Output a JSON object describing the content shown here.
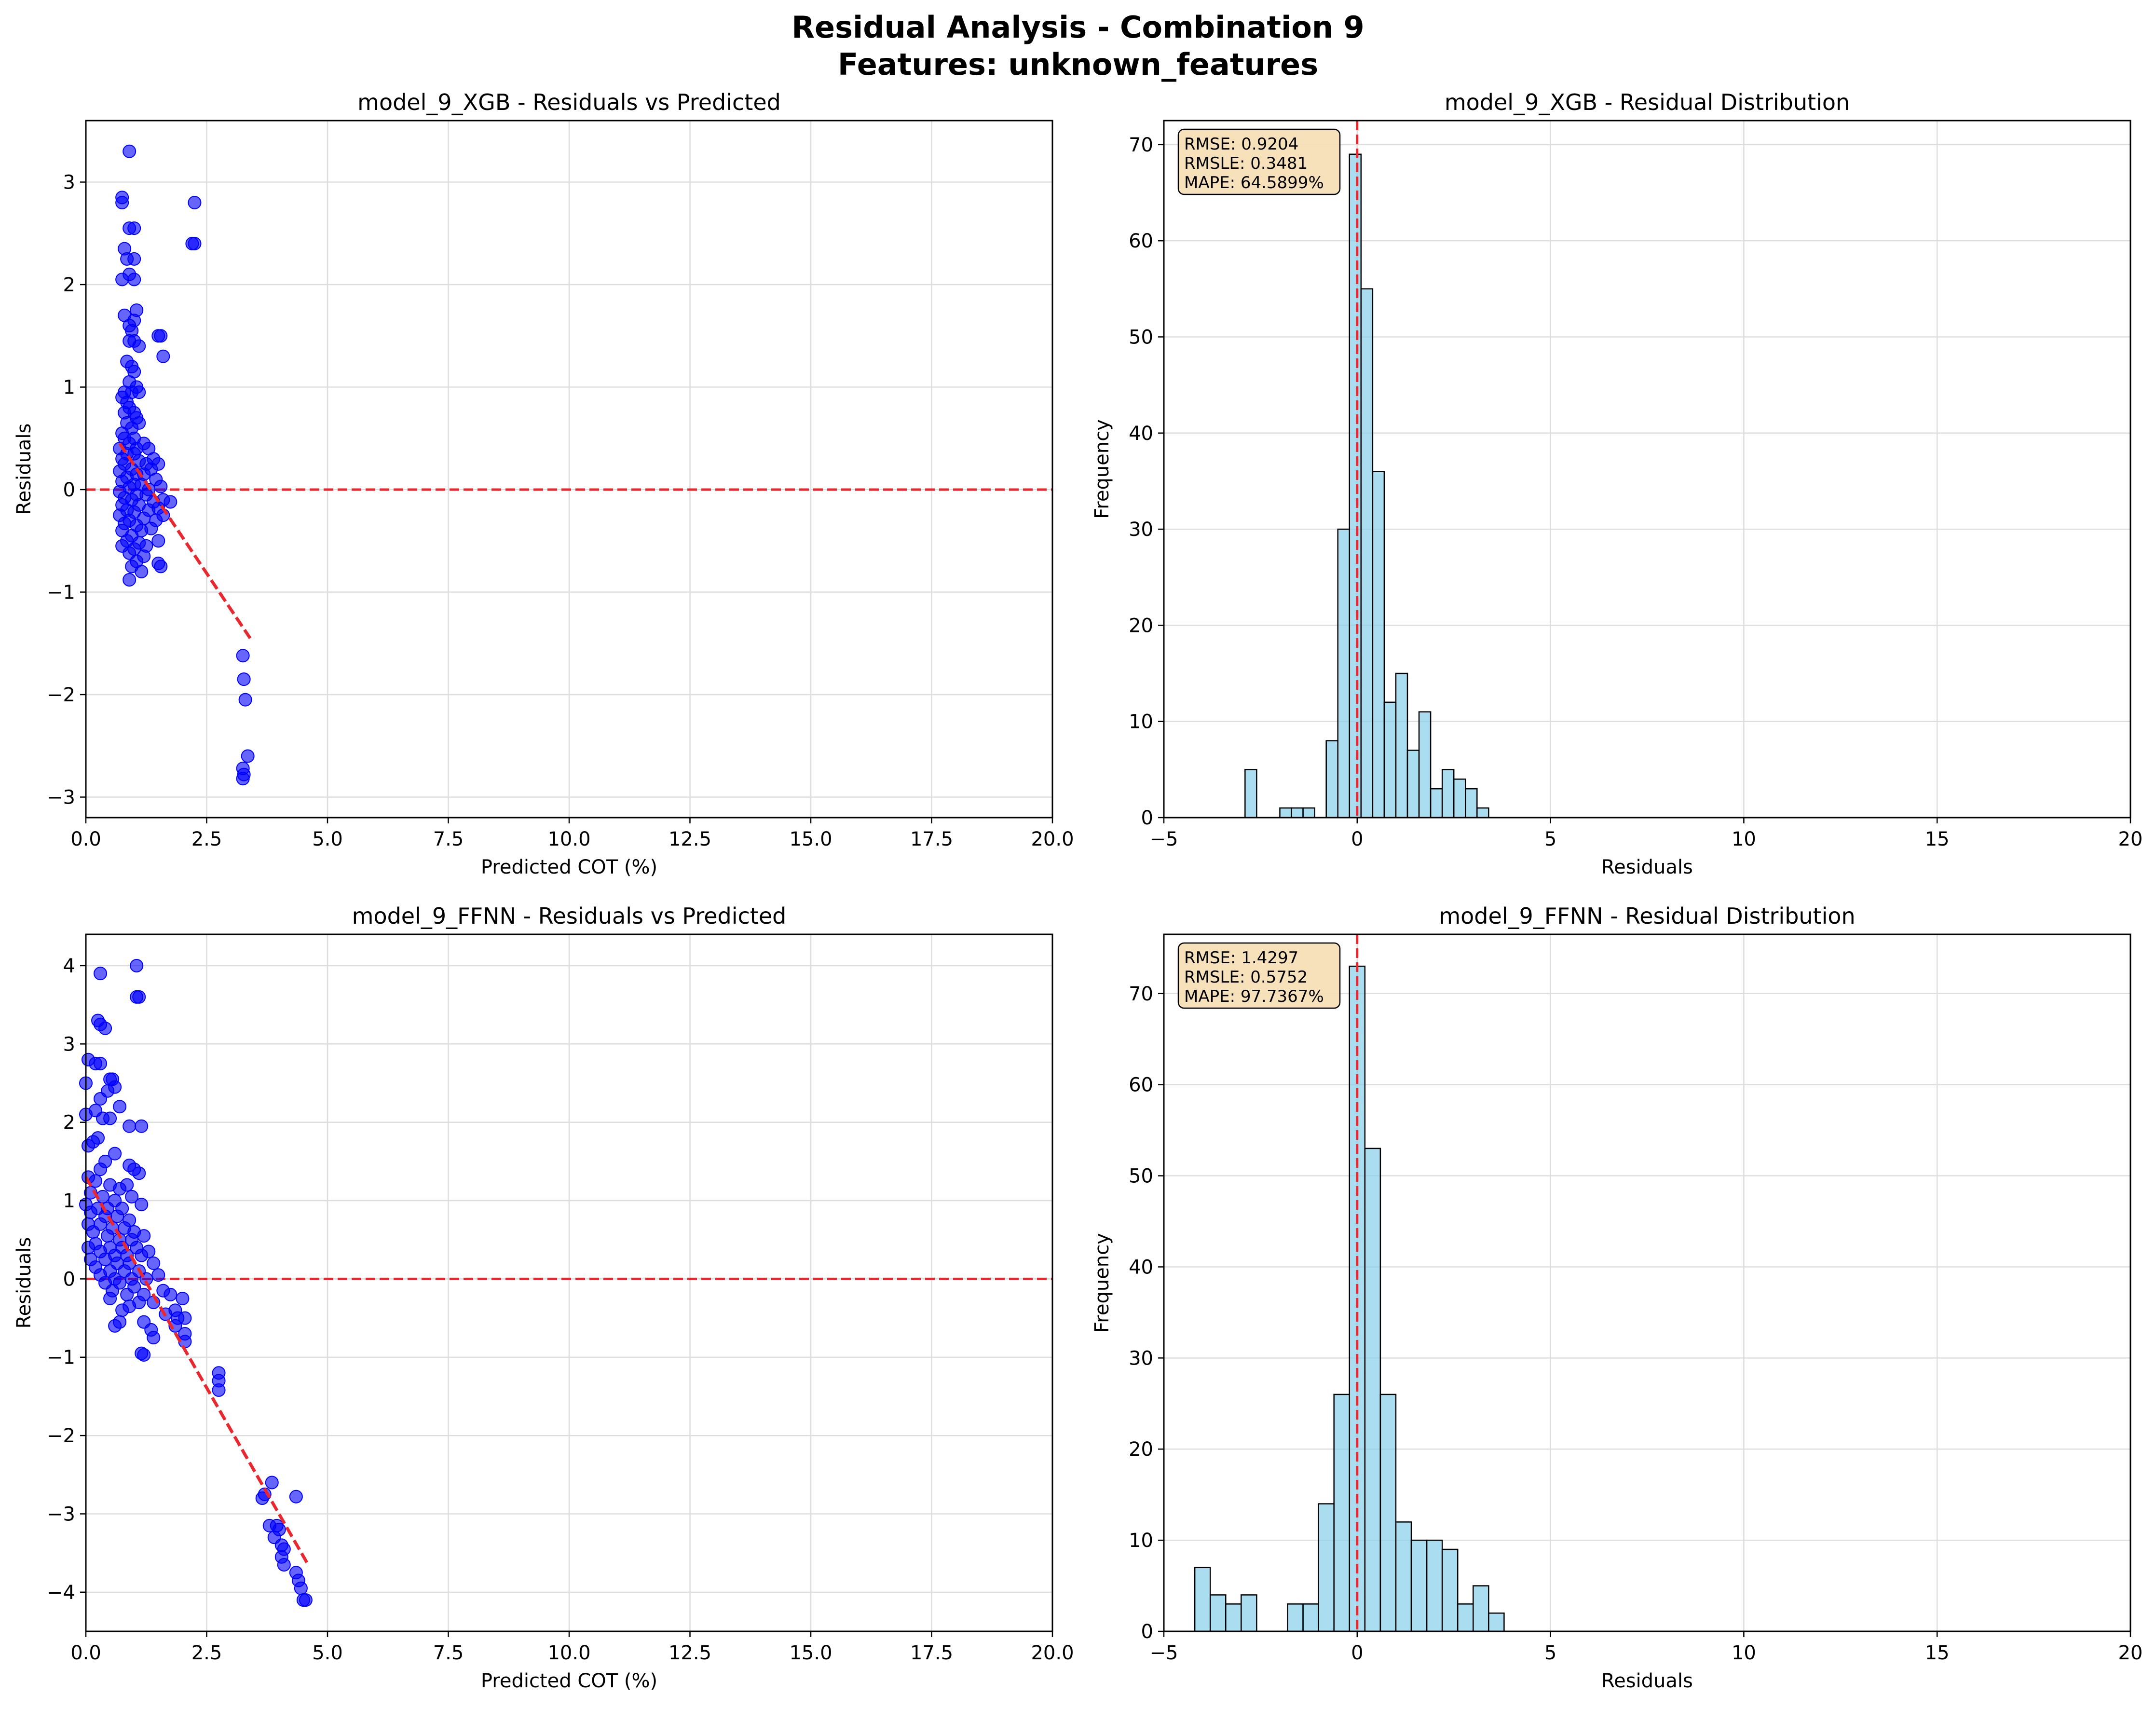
{
  "figure": {
    "title_line1": "Residual Analysis - Combination 9",
    "title_line2": "Features: unknown_features"
  },
  "colors": {
    "scatter": "#0000ff",
    "trend": "#e8282e",
    "zero_line": "#e8282e",
    "hist_fill": "#87ceeb",
    "hist_edge": "#000000",
    "grid": "#dddddd",
    "stats_box": "#f5deb3"
  },
  "chart_data": [
    {
      "type": "scatter",
      "title": "model_9_XGB - Residuals vs Predicted",
      "xlabel": "Predicted COT (%)",
      "ylabel": "Residuals",
      "xlim": [
        0,
        20
      ],
      "ylim": [
        -3.2,
        3.6
      ],
      "xticks": [
        0,
        2.5,
        5,
        7.5,
        10,
        12.5,
        15,
        17.5,
        20
      ],
      "xtick_labels": [
        "0.0",
        "2.5",
        "5.0",
        "7.5",
        "10.0",
        "12.5",
        "15.0",
        "17.5",
        "20.0"
      ],
      "yticks": [
        -3,
        -2,
        -1,
        0,
        1,
        2,
        3
      ],
      "ytick_labels": [
        "−3",
        "−2",
        "−1",
        "0",
        "1",
        "2",
        "3"
      ],
      "grid": true,
      "zero_line": 0,
      "trend": {
        "x": [
          0.7,
          3.4
        ],
        "y": [
          0.45,
          -1.45
        ]
      },
      "points": [
        [
          0.9,
          3.3
        ],
        [
          0.75,
          2.85
        ],
        [
          0.75,
          2.8
        ],
        [
          2.25,
          2.8
        ],
        [
          0.9,
          2.55
        ],
        [
          1.0,
          2.55
        ],
        [
          0.8,
          2.35
        ],
        [
          2.2,
          2.4
        ],
        [
          2.25,
          2.4
        ],
        [
          0.85,
          2.25
        ],
        [
          1.0,
          2.25
        ],
        [
          0.75,
          2.05
        ],
        [
          0.9,
          2.1
        ],
        [
          1.0,
          2.05
        ],
        [
          0.8,
          1.7
        ],
        [
          1.05,
          1.75
        ],
        [
          0.9,
          1.6
        ],
        [
          1.0,
          1.65
        ],
        [
          0.95,
          1.55
        ],
        [
          1.5,
          1.5
        ],
        [
          1.55,
          1.5
        ],
        [
          1.0,
          1.45
        ],
        [
          0.9,
          1.45
        ],
        [
          1.1,
          1.4
        ],
        [
          1.6,
          1.3
        ],
        [
          0.85,
          1.25
        ],
        [
          0.95,
          1.2
        ],
        [
          1.0,
          1.15
        ],
        [
          0.9,
          1.05
        ],
        [
          1.05,
          1.0
        ],
        [
          0.8,
          0.95
        ],
        [
          0.95,
          0.95
        ],
        [
          1.1,
          0.95
        ],
        [
          0.75,
          0.9
        ],
        [
          0.85,
          0.85
        ],
        [
          0.9,
          0.8
        ],
        [
          1.0,
          0.75
        ],
        [
          0.8,
          0.75
        ],
        [
          1.05,
          0.7
        ],
        [
          0.85,
          0.65
        ],
        [
          0.95,
          0.6
        ],
        [
          1.1,
          0.65
        ],
        [
          0.75,
          0.55
        ],
        [
          0.8,
          0.5
        ],
        [
          1.0,
          0.5
        ],
        [
          1.2,
          0.45
        ],
        [
          0.9,
          0.45
        ],
        [
          0.7,
          0.4
        ],
        [
          1.05,
          0.4
        ],
        [
          1.3,
          0.4
        ],
        [
          0.85,
          0.35
        ],
        [
          1.0,
          0.35
        ],
        [
          1.4,
          0.3
        ],
        [
          0.75,
          0.3
        ],
        [
          1.1,
          0.28
        ],
        [
          1.25,
          0.25
        ],
        [
          0.8,
          0.25
        ],
        [
          1.5,
          0.25
        ],
        [
          0.95,
          0.2
        ],
        [
          1.35,
          0.2
        ],
        [
          0.7,
          0.18
        ],
        [
          1.05,
          0.15
        ],
        [
          1.2,
          0.15
        ],
        [
          0.85,
          0.12
        ],
        [
          1.45,
          0.1
        ],
        [
          0.75,
          0.08
        ],
        [
          1.0,
          0.05
        ],
        [
          1.15,
          0.05
        ],
        [
          1.55,
          0.03
        ],
        [
          0.9,
          0.02
        ],
        [
          1.3,
          0.0
        ],
        [
          0.7,
          -0.02
        ],
        [
          1.05,
          -0.05
        ],
        [
          1.25,
          -0.05
        ],
        [
          0.8,
          -0.08
        ],
        [
          1.6,
          -0.1
        ],
        [
          0.95,
          -0.1
        ],
        [
          1.4,
          -0.12
        ],
        [
          1.75,
          -0.12
        ],
        [
          0.75,
          -0.15
        ],
        [
          1.1,
          -0.15
        ],
        [
          1.5,
          -0.18
        ],
        [
          0.85,
          -0.2
        ],
        [
          1.3,
          -0.2
        ],
        [
          1.0,
          -0.22
        ],
        [
          1.6,
          -0.25
        ],
        [
          0.7,
          -0.25
        ],
        [
          1.2,
          -0.28
        ],
        [
          0.9,
          -0.3
        ],
        [
          1.45,
          -0.3
        ],
        [
          0.8,
          -0.33
        ],
        [
          1.05,
          -0.35
        ],
        [
          1.35,
          -0.38
        ],
        [
          0.75,
          -0.4
        ],
        [
          1.15,
          -0.4
        ],
        [
          0.95,
          -0.45
        ],
        [
          1.5,
          -0.5
        ],
        [
          0.85,
          -0.5
        ],
        [
          1.1,
          -0.52
        ],
        [
          1.25,
          -0.55
        ],
        [
          0.75,
          -0.55
        ],
        [
          1.0,
          -0.58
        ],
        [
          0.9,
          -0.62
        ],
        [
          1.2,
          -0.65
        ],
        [
          1.05,
          -0.7
        ],
        [
          1.5,
          -0.72
        ],
        [
          1.55,
          -0.75
        ],
        [
          0.95,
          -0.75
        ],
        [
          1.15,
          -0.8
        ],
        [
          0.9,
          -0.88
        ],
        [
          3.25,
          -1.62
        ],
        [
          3.27,
          -1.85
        ],
        [
          3.3,
          -2.05
        ],
        [
          3.35,
          -2.6
        ],
        [
          3.25,
          -2.72
        ],
        [
          3.27,
          -2.78
        ],
        [
          3.25,
          -2.82
        ]
      ]
    },
    {
      "type": "bar",
      "title": "model_9_XGB - Residual Distribution",
      "xlabel": "Residuals",
      "ylabel": "Frequency",
      "xlim": [
        -5,
        20
      ],
      "ylim": [
        0,
        72.5
      ],
      "xticks": [
        -5,
        0,
        5,
        10,
        15,
        20
      ],
      "xtick_labels": [
        "−5",
        "0",
        "5",
        "10",
        "15",
        "20"
      ],
      "yticks": [
        0,
        10,
        20,
        30,
        40,
        50,
        60,
        70
      ],
      "ytick_labels": [
        "0",
        "10",
        "20",
        "30",
        "40",
        "50",
        "60",
        "70"
      ],
      "grid": true,
      "vline": 0,
      "bin_start": -2.9,
      "bin_width": 0.3,
      "counts": [
        5,
        0,
        0,
        1,
        1,
        1,
        0,
        8,
        30,
        69,
        55,
        36,
        12,
        15,
        7,
        11,
        3,
        5,
        4,
        3,
        1
      ],
      "stats": [
        "RMSE: 0.9204",
        "RMSLE: 0.3481",
        "MAPE: 64.5899%"
      ]
    },
    {
      "type": "scatter",
      "title": "model_9_FFNN - Residuals vs Predicted",
      "xlabel": "Predicted COT (%)",
      "ylabel": "Residuals",
      "xlim": [
        0,
        20
      ],
      "ylim": [
        -4.5,
        4.4
      ],
      "xticks": [
        0,
        2.5,
        5,
        7.5,
        10,
        12.5,
        15,
        17.5,
        20
      ],
      "xtick_labels": [
        "0.0",
        "2.5",
        "5.0",
        "7.5",
        "10.0",
        "12.5",
        "15.0",
        "17.5",
        "20.0"
      ],
      "yticks": [
        -4,
        -3,
        -2,
        -1,
        0,
        1,
        2,
        3,
        4
      ],
      "ytick_labels": [
        "−4",
        "−3",
        "−2",
        "−1",
        "0",
        "1",
        "2",
        "3",
        "4"
      ],
      "grid": true,
      "zero_line": 0,
      "trend": {
        "x": [
          0.0,
          4.6
        ],
        "y": [
          1.3,
          -3.65
        ]
      },
      "points": [
        [
          1.05,
          4.0
        ],
        [
          0.3,
          3.9
        ],
        [
          1.05,
          3.6
        ],
        [
          1.1,
          3.6
        ],
        [
          0.25,
          3.3
        ],
        [
          0.3,
          3.25
        ],
        [
          0.4,
          3.2
        ],
        [
          0.05,
          2.8
        ],
        [
          0.2,
          2.75
        ],
        [
          0.3,
          2.75
        ],
        [
          0.5,
          2.55
        ],
        [
          0.55,
          2.55
        ],
        [
          0.0,
          2.5
        ],
        [
          0.45,
          2.4
        ],
        [
          0.6,
          2.45
        ],
        [
          0.3,
          2.3
        ],
        [
          0.7,
          2.2
        ],
        [
          0.2,
          2.15
        ],
        [
          0.0,
          2.1
        ],
        [
          0.35,
          2.05
        ],
        [
          0.5,
          2.05
        ],
        [
          0.9,
          1.95
        ],
        [
          1.15,
          1.95
        ],
        [
          0.25,
          1.8
        ],
        [
          0.15,
          1.75
        ],
        [
          0.05,
          1.7
        ],
        [
          0.6,
          1.6
        ],
        [
          0.4,
          1.5
        ],
        [
          0.9,
          1.45
        ],
        [
          0.3,
          1.4
        ],
        [
          1.0,
          1.4
        ],
        [
          1.1,
          1.35
        ],
        [
          0.05,
          1.3
        ],
        [
          0.2,
          1.25
        ],
        [
          0.5,
          1.2
        ],
        [
          0.7,
          1.15
        ],
        [
          0.85,
          1.2
        ],
        [
          0.1,
          1.1
        ],
        [
          0.35,
          1.05
        ],
        [
          0.6,
          1.0
        ],
        [
          0.95,
          1.05
        ],
        [
          0.0,
          0.95
        ],
        [
          0.25,
          0.9
        ],
        [
          0.45,
          0.9
        ],
        [
          0.75,
          0.9
        ],
        [
          1.15,
          0.95
        ],
        [
          0.1,
          0.85
        ],
        [
          0.4,
          0.8
        ],
        [
          0.65,
          0.8
        ],
        [
          0.9,
          0.75
        ],
        [
          0.05,
          0.7
        ],
        [
          0.3,
          0.7
        ],
        [
          0.55,
          0.65
        ],
        [
          0.8,
          0.65
        ],
        [
          1.0,
          0.6
        ],
        [
          1.2,
          0.55
        ],
        [
          0.15,
          0.6
        ],
        [
          0.45,
          0.55
        ],
        [
          0.7,
          0.5
        ],
        [
          0.95,
          0.5
        ],
        [
          0.2,
          0.45
        ],
        [
          0.5,
          0.4
        ],
        [
          0.75,
          0.4
        ],
        [
          1.05,
          0.4
        ],
        [
          1.3,
          0.35
        ],
        [
          0.05,
          0.4
        ],
        [
          0.3,
          0.35
        ],
        [
          0.6,
          0.3
        ],
        [
          0.85,
          0.3
        ],
        [
          1.15,
          0.3
        ],
        [
          0.1,
          0.25
        ],
        [
          0.4,
          0.25
        ],
        [
          0.65,
          0.2
        ],
        [
          0.9,
          0.2
        ],
        [
          1.4,
          0.2
        ],
        [
          0.2,
          0.15
        ],
        [
          0.5,
          0.1
        ],
        [
          0.8,
          0.1
        ],
        [
          1.1,
          0.1
        ],
        [
          1.5,
          0.05
        ],
        [
          0.3,
          0.05
        ],
        [
          0.6,
          0.0
        ],
        [
          0.95,
          0.0
        ],
        [
          1.25,
          0.0
        ],
        [
          0.4,
          -0.05
        ],
        [
          0.7,
          -0.05
        ],
        [
          1.0,
          -0.1
        ],
        [
          1.6,
          -0.15
        ],
        [
          0.55,
          -0.15
        ],
        [
          0.85,
          -0.2
        ],
        [
          1.2,
          -0.2
        ],
        [
          1.75,
          -0.2
        ],
        [
          2.0,
          -0.25
        ],
        [
          0.5,
          -0.25
        ],
        [
          1.1,
          -0.3
        ],
        [
          1.4,
          -0.3
        ],
        [
          0.9,
          -0.35
        ],
        [
          1.85,
          -0.4
        ],
        [
          0.75,
          -0.4
        ],
        [
          1.65,
          -0.45
        ],
        [
          1.9,
          -0.5
        ],
        [
          2.05,
          -0.5
        ],
        [
          0.7,
          -0.55
        ],
        [
          1.2,
          -0.55
        ],
        [
          0.6,
          -0.6
        ],
        [
          1.85,
          -0.6
        ],
        [
          1.35,
          -0.65
        ],
        [
          2.05,
          -0.7
        ],
        [
          1.4,
          -0.75
        ],
        [
          2.05,
          -0.8
        ],
        [
          1.15,
          -0.95
        ],
        [
          1.2,
          -0.97
        ],
        [
          2.75,
          -1.2
        ],
        [
          2.75,
          -1.3
        ],
        [
          2.75,
          -1.42
        ],
        [
          3.7,
          -2.75
        ],
        [
          3.65,
          -2.8
        ],
        [
          3.85,
          -2.6
        ],
        [
          4.35,
          -2.78
        ],
        [
          3.8,
          -3.15
        ],
        [
          3.95,
          -3.15
        ],
        [
          4.0,
          -3.2
        ],
        [
          3.9,
          -3.3
        ],
        [
          4.05,
          -3.4
        ],
        [
          4.1,
          -3.45
        ],
        [
          4.05,
          -3.55
        ],
        [
          4.1,
          -3.65
        ],
        [
          4.35,
          -3.75
        ],
        [
          4.4,
          -3.85
        ],
        [
          4.45,
          -3.95
        ],
        [
          4.5,
          -4.1
        ],
        [
          4.55,
          -4.1
        ]
      ]
    },
    {
      "type": "bar",
      "title": "model_9_FFNN - Residual Distribution",
      "xlabel": "Residuals",
      "ylabel": "Frequency",
      "xlim": [
        -5,
        20
      ],
      "ylim": [
        0,
        76.5
      ],
      "xticks": [
        -5,
        0,
        5,
        10,
        15,
        20
      ],
      "xtick_labels": [
        "−5",
        "0",
        "5",
        "10",
        "15",
        "20"
      ],
      "yticks": [
        0,
        10,
        20,
        30,
        40,
        50,
        60,
        70
      ],
      "ytick_labels": [
        "0",
        "10",
        "20",
        "30",
        "40",
        "50",
        "60",
        "70"
      ],
      "grid": true,
      "vline": 0,
      "bin_start": -4.2,
      "bin_width": 0.4,
      "counts": [
        7,
        4,
        3,
        4,
        0,
        0,
        3,
        3,
        14,
        26,
        73,
        53,
        26,
        12,
        10,
        10,
        9,
        3,
        5,
        2
      ],
      "stats": [
        "RMSE: 1.4297",
        "RMSLE: 0.5752",
        "MAPE: 97.7367%"
      ]
    }
  ]
}
